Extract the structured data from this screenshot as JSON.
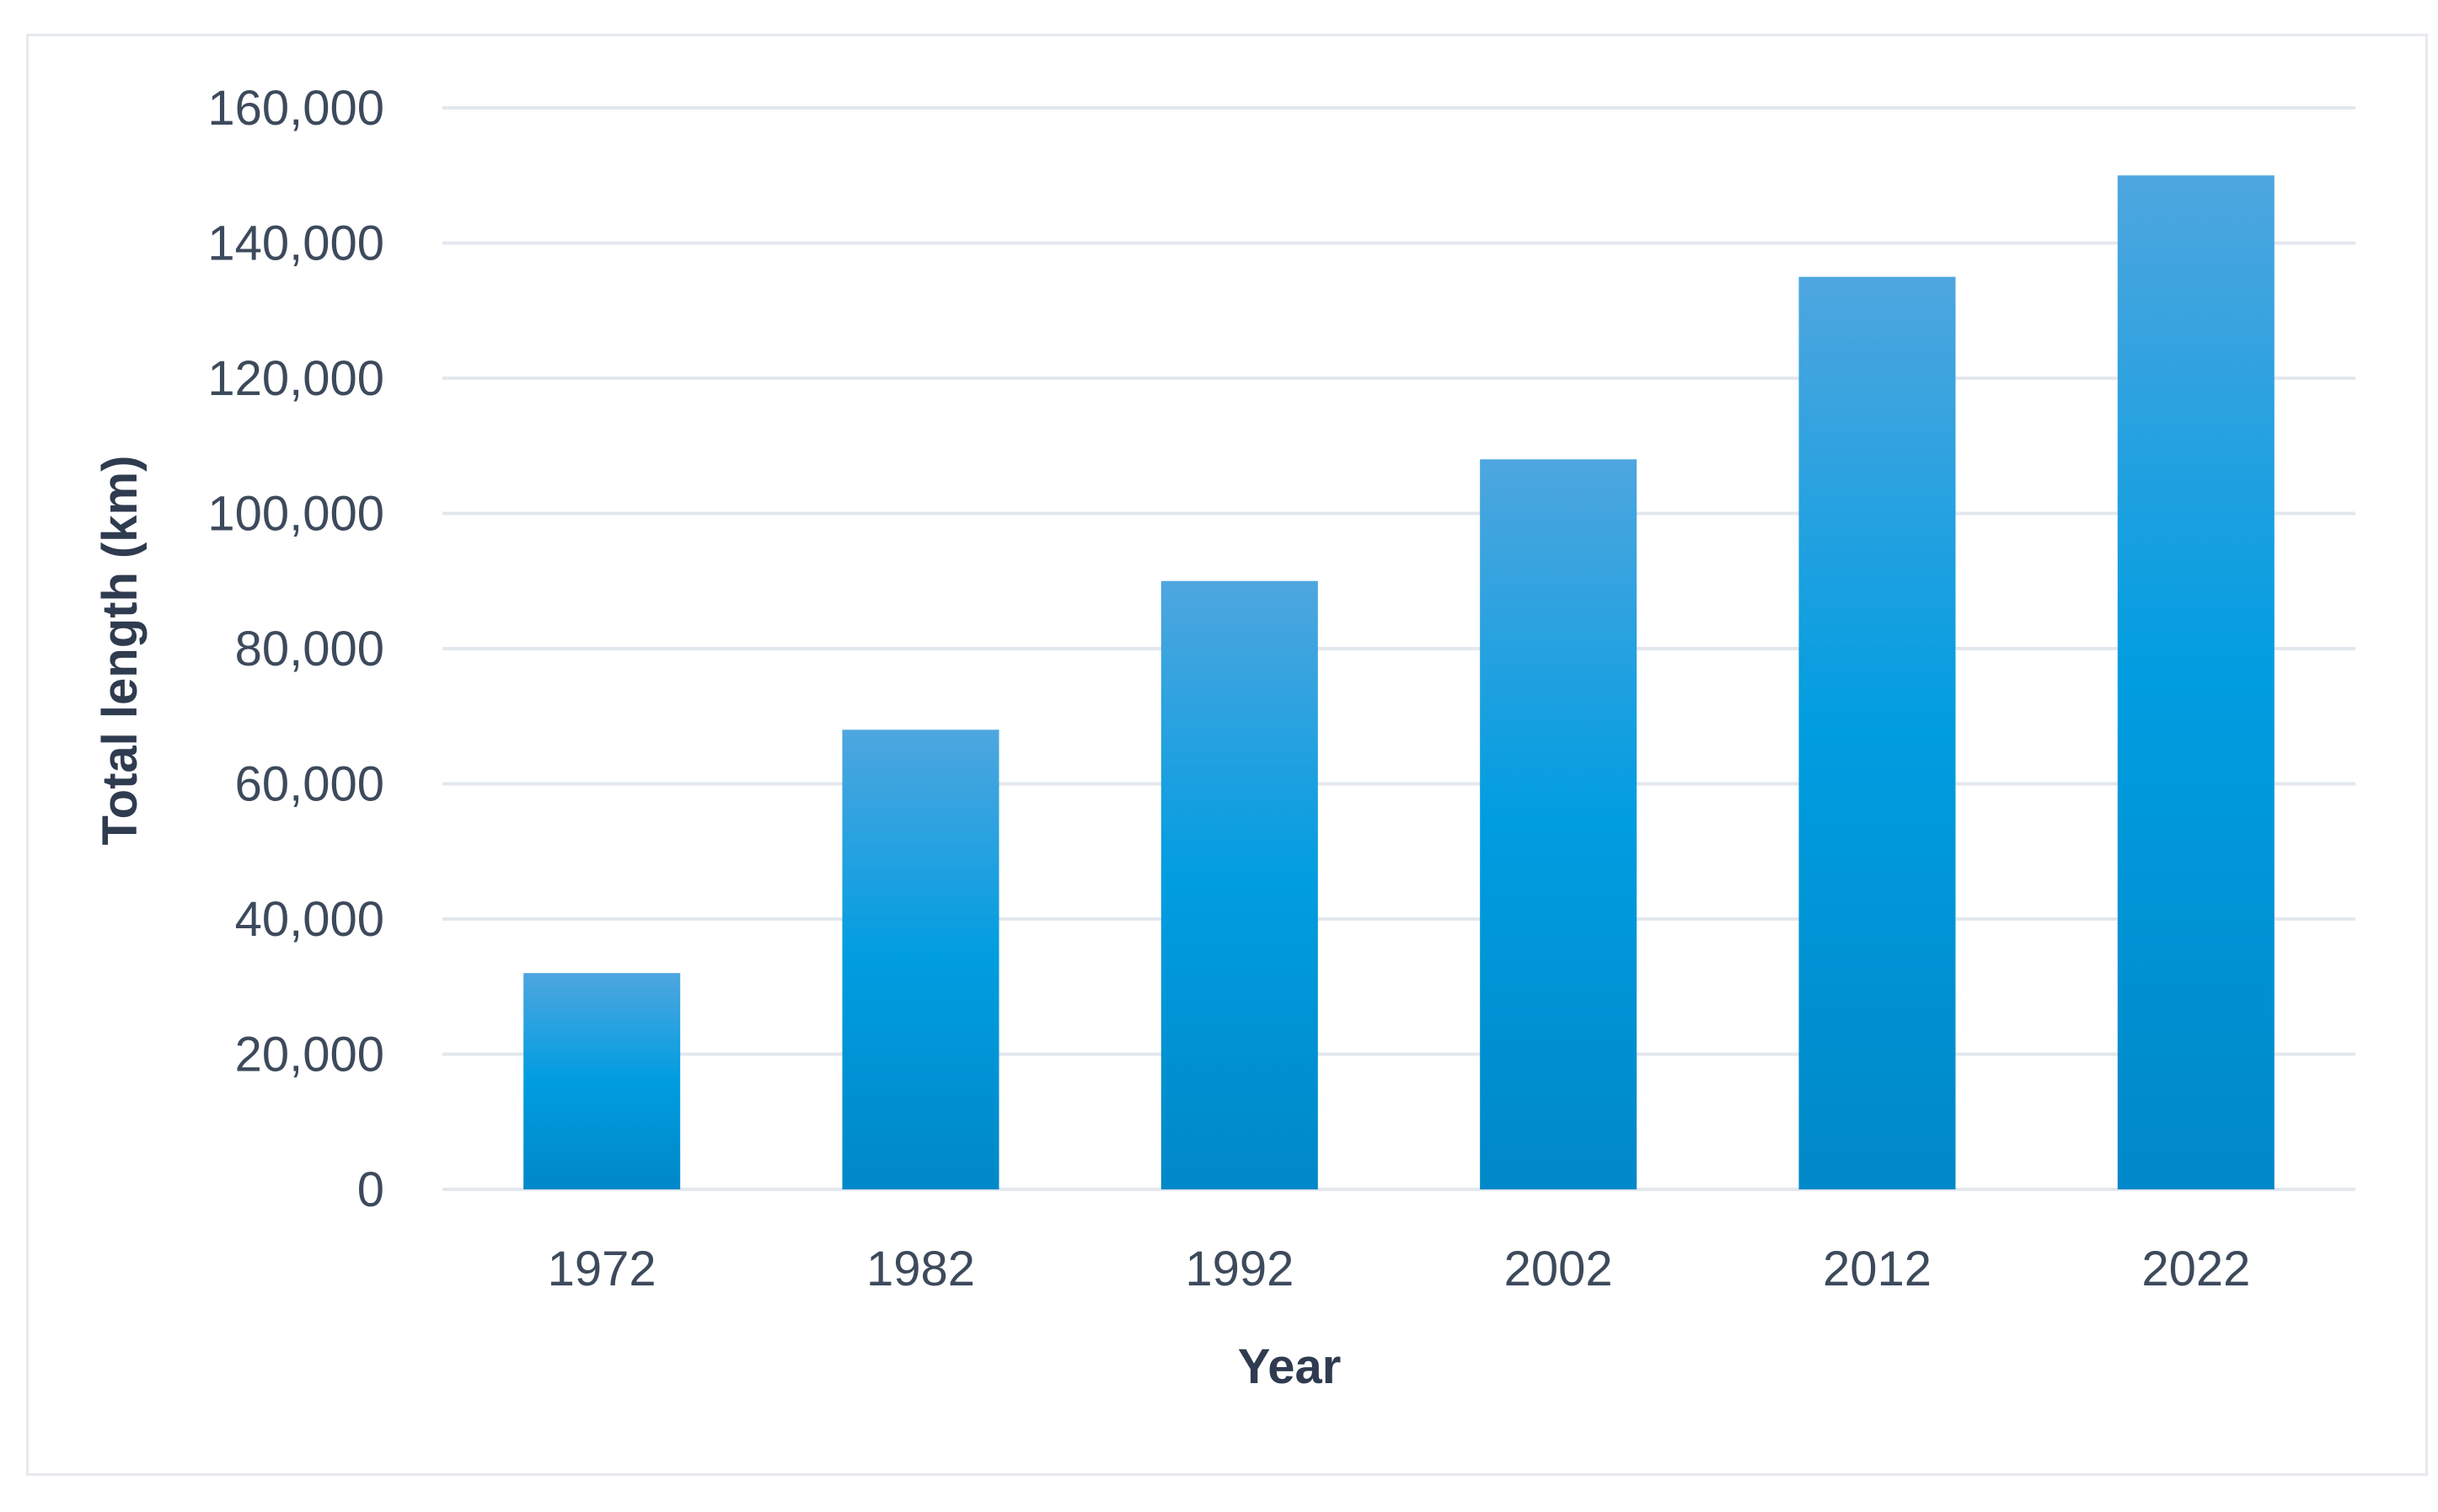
{
  "chart_data": {
    "type": "bar",
    "title": "",
    "xlabel": "Year",
    "ylabel": "Total length (km)",
    "categories": [
      "1972",
      "1982",
      "1992",
      "2002",
      "2012",
      "2022"
    ],
    "series": [
      {
        "values": [
          32000,
          68000,
          90000,
          108000,
          135000,
          150000
        ]
      }
    ],
    "ylim": [
      0,
      160000
    ],
    "yticks": [
      0,
      20000,
      40000,
      60000,
      80000,
      100000,
      120000,
      140000,
      160000
    ],
    "ytick_labels": [
      "0",
      "20,000",
      "40,000",
      "60,000",
      "80,000",
      "100,000",
      "120,000",
      "140,000",
      "160,000"
    ],
    "grid": true,
    "legend": "none",
    "colors": {
      "bar_top": "#4ea6df",
      "bar_mid": "#009de0",
      "bar_bottom": "#0088c8",
      "grid": "#e3e7ee",
      "text": "#3d4a5c"
    }
  }
}
